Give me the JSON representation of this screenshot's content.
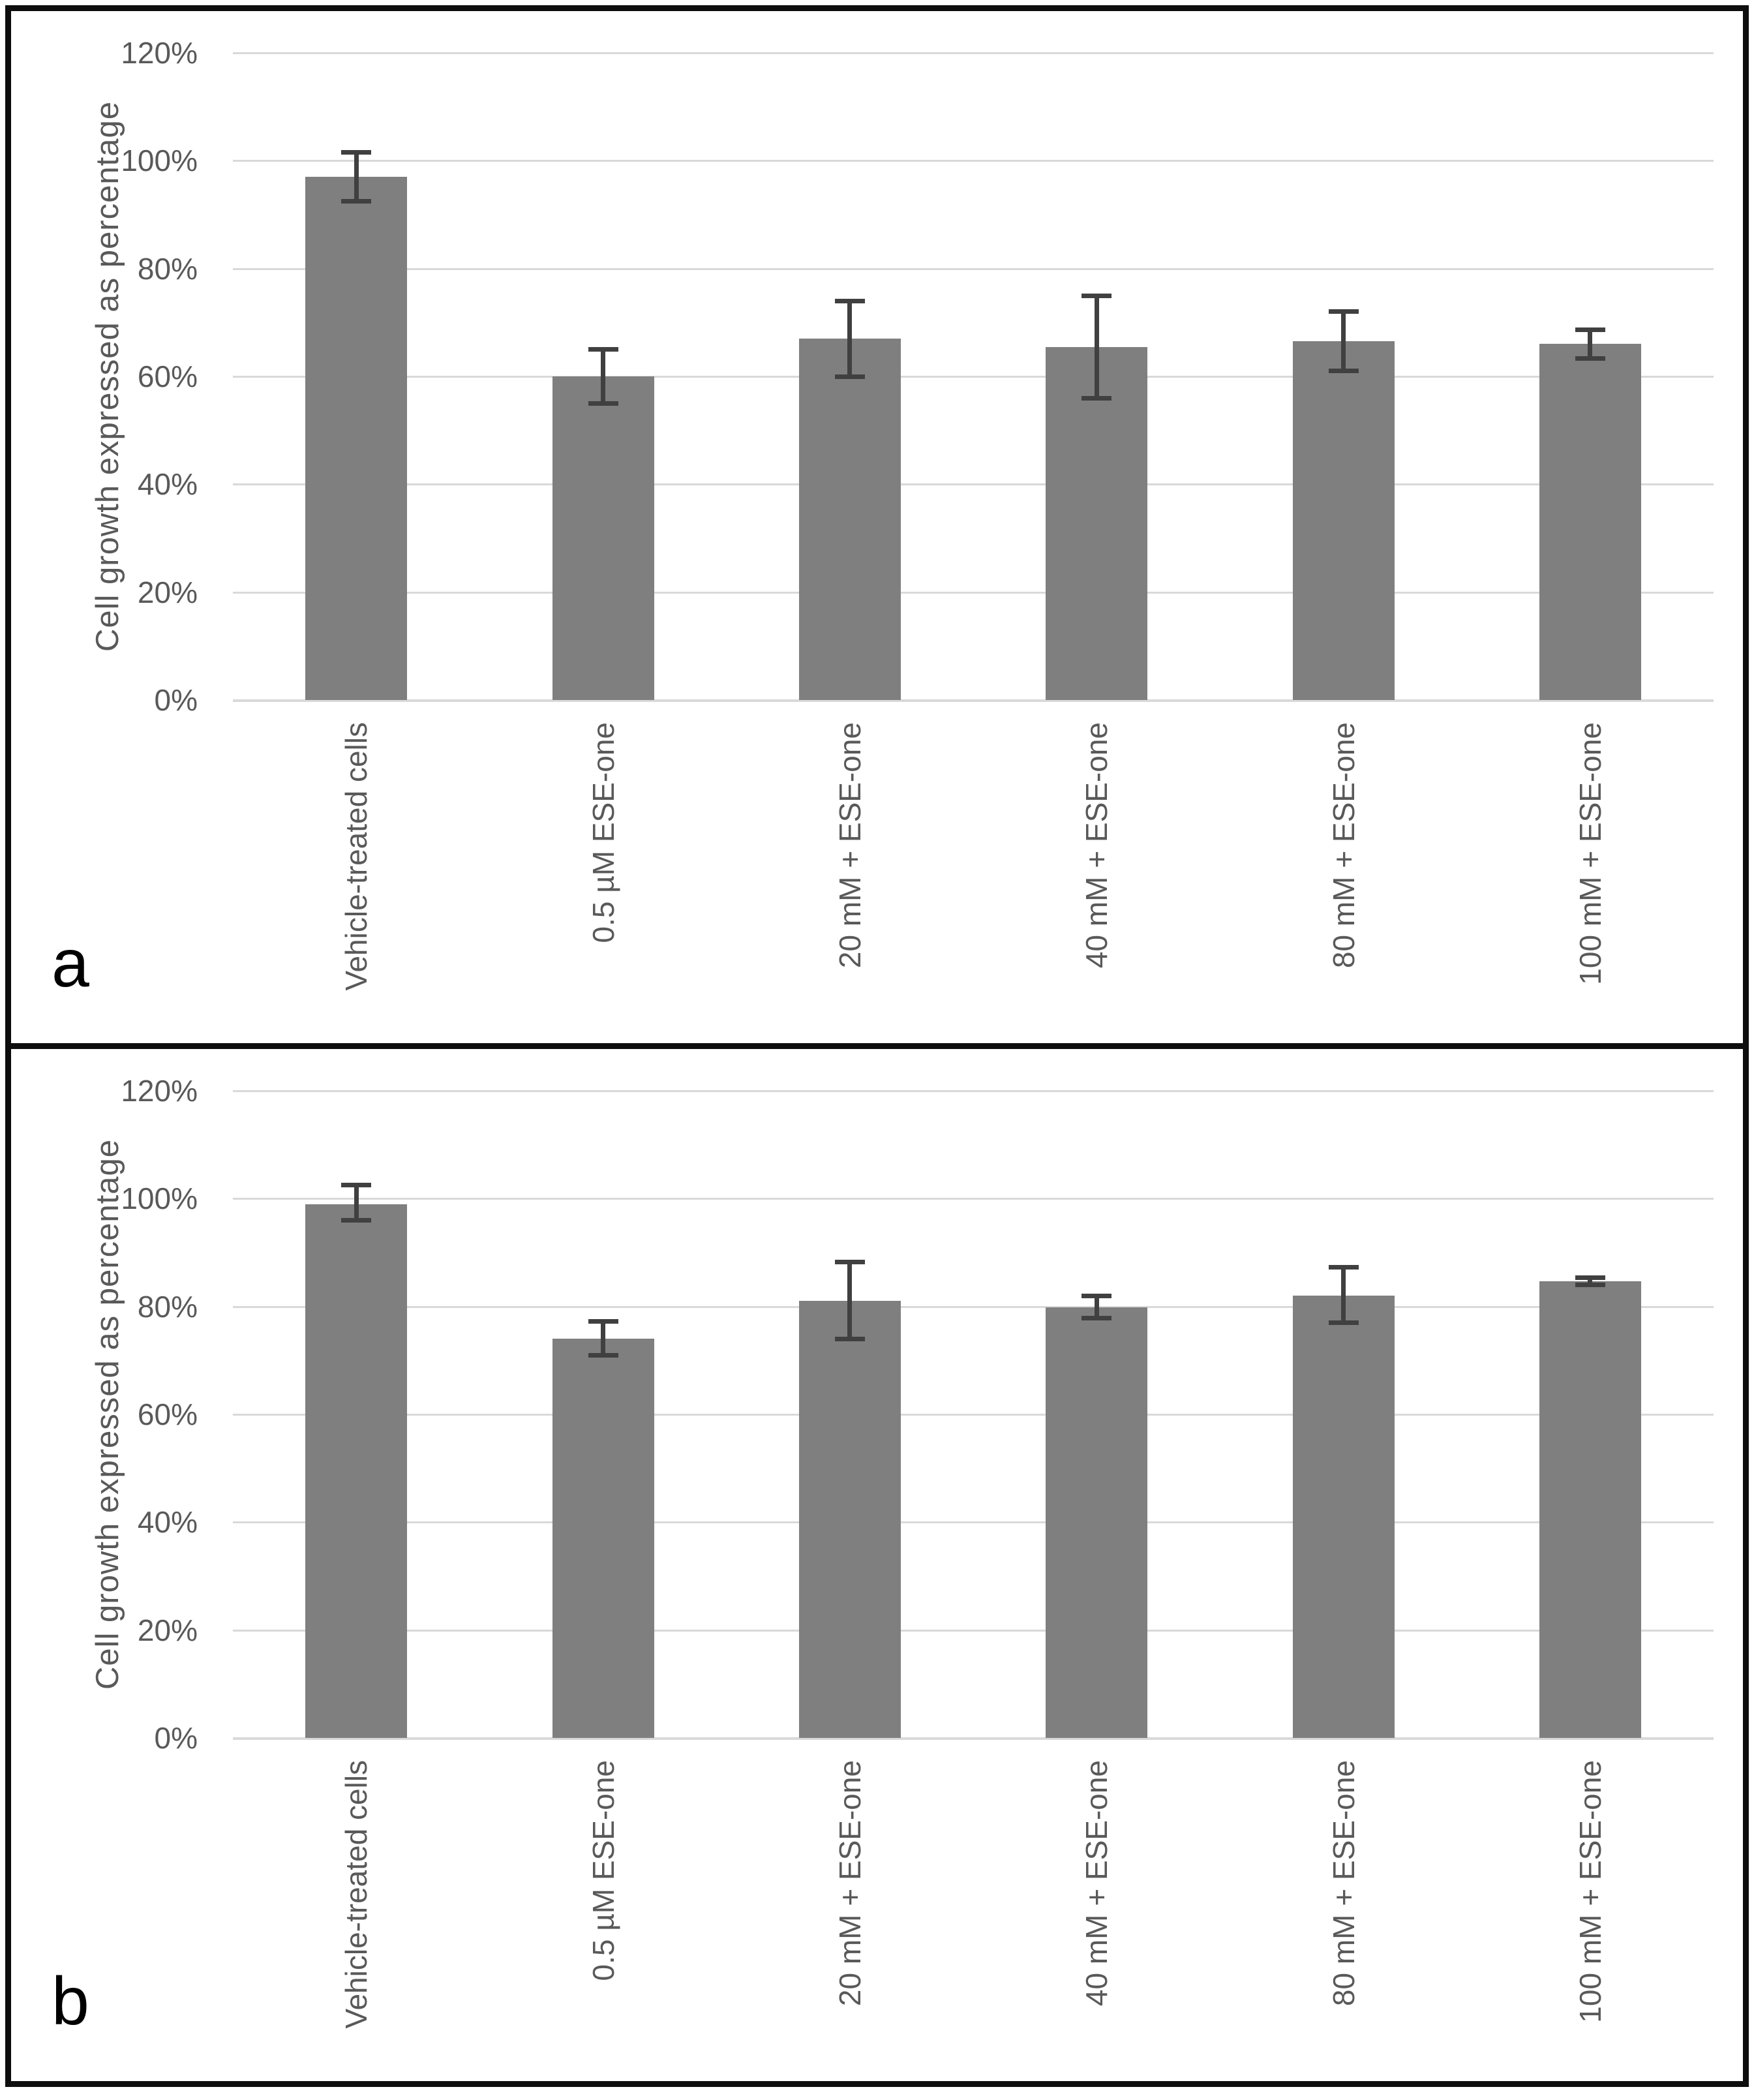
{
  "accent_colors": {
    "bar_fill": "#7f7f7f",
    "error_bar": "#404040",
    "gridline": "#d9d9d9",
    "axis_text": "#595959",
    "panel_border": "#0e0e0e",
    "panel_letter_color": "#000000"
  },
  "chart_data": [
    {
      "type": "bar",
      "panel_label": "a",
      "title": "",
      "xlabel": "",
      "ylabel": "Cell growth expressed as percentage",
      "ylim": [
        0,
        120
      ],
      "ytick_step": 20,
      "ytick_labels": [
        "0%",
        "20%",
        "40%",
        "60%",
        "80%",
        "100%",
        "120%"
      ],
      "grid": true,
      "legend": "none",
      "categories": [
        "Vehicle-treated cells",
        "0.5 µM ESE-one",
        "20 mM + ESE-one",
        "40 mM + ESE-one",
        "80 mM + ESE-one",
        "100 mM + ESE-one"
      ],
      "values": [
        97,
        60,
        67,
        65.5,
        66.5,
        66
      ],
      "error_plus": [
        4.5,
        5,
        7,
        9.5,
        5.5,
        2.7
      ],
      "error_minus": [
        4.5,
        5,
        7,
        9.5,
        5.5,
        2.7
      ],
      "bar_color": "#7f7f7f",
      "error_color": "#404040"
    },
    {
      "type": "bar",
      "panel_label": "b",
      "title": "",
      "xlabel": "",
      "ylabel": "Cell growth expressed as percentage",
      "ylim": [
        0,
        120
      ],
      "ytick_step": 20,
      "ytick_labels": [
        "0%",
        "20%",
        "40%",
        "60%",
        "80%",
        "100%",
        "120%"
      ],
      "grid": true,
      "legend": "none",
      "categories": [
        "Vehicle-treated cells",
        "0.5 µM ESE-one",
        "20 mM + ESE-one",
        "40 mM + ESE-one",
        "80 mM + ESE-one",
        "100 mM + ESE-one"
      ],
      "values": [
        99,
        74,
        81,
        79.8,
        82,
        84.7
      ],
      "error_plus": [
        3.5,
        3.2,
        7.3,
        2.2,
        5.3,
        0.7
      ],
      "error_minus": [
        3,
        3,
        7,
        2,
        5,
        0.7
      ],
      "bar_color": "#7f7f7f",
      "error_color": "#404040"
    }
  ]
}
